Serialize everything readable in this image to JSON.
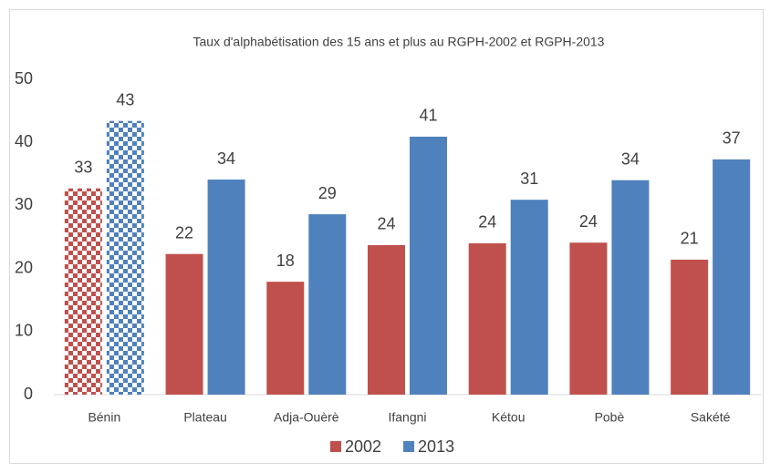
{
  "chart_data": {
    "type": "bar",
    "title": "Taux d'alphabétisation des 15 ans et plus au RGPH-2002 et RGPH-2013",
    "categories": [
      "Bénin",
      "Plateau",
      "Adja-Ouèrè",
      "Ifangni",
      "Kétou",
      "Pobè",
      "Sakété"
    ],
    "series": [
      {
        "name": "2002",
        "color": "#c0504d",
        "values": [
          32.7,
          22.3,
          17.9,
          23.7,
          24.0,
          24.1,
          21.4
        ],
        "value_labels": [
          "33",
          "22",
          "18",
          "24",
          "24",
          "24",
          "21"
        ]
      },
      {
        "name": "2013",
        "color": "#4f81bd",
        "values": [
          43.4,
          34.1,
          28.6,
          40.9,
          30.9,
          34.0,
          37.3
        ],
        "value_labels": [
          "43",
          "34",
          "29",
          "41",
          "31",
          "34",
          "37"
        ]
      }
    ],
    "pattern": "checker",
    "pattern_categories": [
      "Bénin"
    ],
    "ylim": [
      0,
      50
    ],
    "yticks": [
      0,
      10,
      20,
      30,
      40,
      50
    ],
    "grid": false,
    "legend": "bottom"
  }
}
